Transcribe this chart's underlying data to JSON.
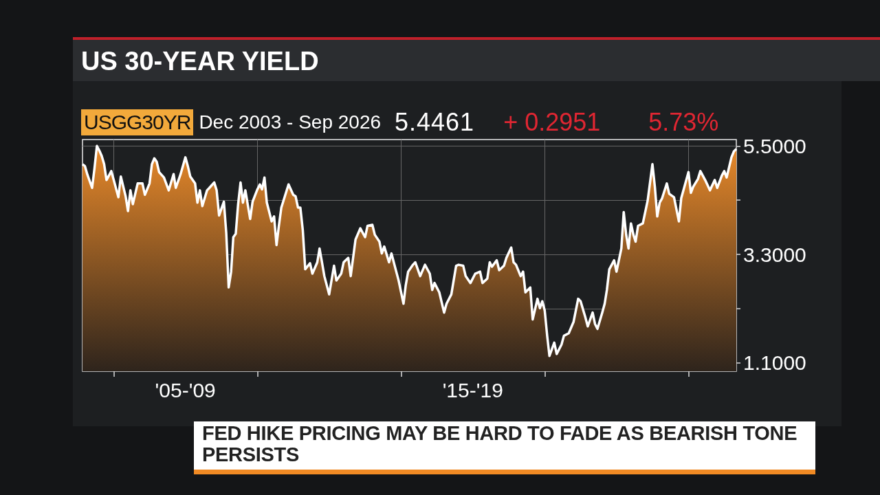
{
  "chart_data": {
    "type": "area",
    "title": "US 30-YEAR YIELD",
    "annotations": [
      "USGG30YR",
      "Dec 2003 - Sep 2026",
      "5.4461",
      "+ 0.2951",
      "5.73%",
      "FED HIKE PRICING MAY BE HARD TO FADE AS BEARISH TONE PERSISTS"
    ],
    "x": [
      "2003-12",
      "2004-01",
      "2004-02",
      "2004-04",
      "2004-05",
      "2004-06",
      "2004-07",
      "2004-08",
      "2004-09",
      "2004-10",
      "2004-11",
      "2004-12",
      "2005-01",
      "2005-03",
      "2005-04",
      "2005-06",
      "2005-07",
      "2005-08",
      "2005-09",
      "2005-11",
      "2006-01",
      "2006-02",
      "2006-04",
      "2006-05",
      "2006-06",
      "2006-07",
      "2006-08",
      "2006-10",
      "2006-12",
      "2007-02",
      "2007-03",
      "2007-05",
      "2007-07",
      "2007-08",
      "2007-09",
      "2007-11",
      "2007-12",
      "2008-01",
      "2008-02",
      "2008-04",
      "2008-05",
      "2008-07",
      "2008-08",
      "2008-09",
      "2008-11",
      "2008-12",
      "2009-01",
      "2009-02",
      "2009-03",
      "2009-04",
      "2009-05",
      "2009-06",
      "2009-07",
      "2009-08",
      "2009-10",
      "2009-11",
      "2010-01",
      "2010-02",
      "2010-03",
      "2010-04",
      "2010-05",
      "2010-07",
      "2010-08",
      "2010-09",
      "2010-10",
      "2010-11",
      "2011-02",
      "2011-04",
      "2011-05",
      "2011-06",
      "2011-07",
      "2011-08",
      "2011-09",
      "2011-11",
      "2011-12",
      "2012-02",
      "2012-03",
      "2012-04",
      "2012-05",
      "2012-07",
      "2012-09",
      "2012-10",
      "2012-12",
      "2013-01",
      "2013-03",
      "2013-04",
      "2013-06",
      "2013-08",
      "2013-10",
      "2013-11",
      "2014-01",
      "2014-02",
      "2014-04",
      "2014-05",
      "2014-06",
      "2014-08",
      "2014-09",
      "2014-11",
      "2014-12",
      "2015-02",
      "2015-03",
      "2015-04",
      "2015-06",
      "2015-07",
      "2015-09",
      "2015-11",
      "2016-01",
      "2016-02",
      "2016-03",
      "2016-05",
      "2016-07",
      "2016-08",
      "2016-10",
      "2016-12",
      "2017-01",
      "2017-03",
      "2017-04",
      "2017-06",
      "2017-08",
      "2017-10",
      "2017-11",
      "2018-01",
      "2018-02",
      "2018-03",
      "2018-05",
      "2018-06",
      "2018-08",
      "2018-09",
      "2018-11",
      "2018-12",
      "2019-01",
      "2019-03",
      "2019-04",
      "2019-05",
      "2019-07",
      "2019-08",
      "2019-10",
      "2019-11",
      "2019-12",
      "2020-01",
      "2020-02",
      "2020-03",
      "2020-05",
      "2020-06",
      "2020-08",
      "2020-09",
      "2020-11",
      "2021-01",
      "2021-03",
      "2021-04",
      "2021-06",
      "2021-07",
      "2021-09",
      "2021-10",
      "2021-11",
      "2022-01",
      "2022-02",
      "2022-03",
      "2022-04",
      "2022-06",
      "2022-07",
      "2022-09",
      "2022-10",
      "2022-11",
      "2022-12",
      "2023-01",
      "2023-02",
      "2023-03",
      "2023-04",
      "2023-06",
      "2023-08",
      "2023-10",
      "2023-11",
      "2023-12",
      "2024-01",
      "2024-02",
      "2024-04",
      "2024-05",
      "2024-07",
      "2024-09",
      "2024-10",
      "2025-01",
      "2025-02",
      "2025-03",
      "2025-05",
      "2025-06",
      "2025-08",
      "2025-10",
      "2025-12",
      "2026-01",
      "2026-03",
      "2026-04",
      "2026-05",
      "2026-07",
      "2026-08",
      "2026-09"
    ],
    "series": [
      {
        "color": "#e8892a",
        "values": [
          5.13,
          5.09,
          4.92,
          4.65,
          5.04,
          5.5,
          5.41,
          5.3,
          5.13,
          4.81,
          4.9,
          4.99,
          4.81,
          4.46,
          4.88,
          4.48,
          4.18,
          4.6,
          4.32,
          4.74,
          4.74,
          4.51,
          4.74,
          5.13,
          5.25,
          5.18,
          4.97,
          4.86,
          4.6,
          4.93,
          4.65,
          4.93,
          5.27,
          5.09,
          4.88,
          4.74,
          4.35,
          4.6,
          4.28,
          4.6,
          4.65,
          4.76,
          4.6,
          4.09,
          4.37,
          3.74,
          2.63,
          2.95,
          3.65,
          3.72,
          4.32,
          4.76,
          4.35,
          4.6,
          4.02,
          4.37,
          4.62,
          4.72,
          4.62,
          4.86,
          4.35,
          3.97,
          4.07,
          3.49,
          3.88,
          4.25,
          4.72,
          4.51,
          4.48,
          4.25,
          4.25,
          3.79,
          3.0,
          3.12,
          2.91,
          3.14,
          3.42,
          3.14,
          2.86,
          2.49,
          3.07,
          2.77,
          2.91,
          3.14,
          3.23,
          2.86,
          3.6,
          3.83,
          3.65,
          3.88,
          3.9,
          3.7,
          3.56,
          3.32,
          3.46,
          3.14,
          3.32,
          2.95,
          2.77,
          2.3,
          2.67,
          2.95,
          3.09,
          3.14,
          2.86,
          3.09,
          2.91,
          2.58,
          2.72,
          2.53,
          2.12,
          2.3,
          2.49,
          3.07,
          3.09,
          3.07,
          2.86,
          2.72,
          2.91,
          2.95,
          2.72,
          2.81,
          3.14,
          3.05,
          3.18,
          2.98,
          3.07,
          3.23,
          3.44,
          3.14,
          3.09,
          2.86,
          2.95,
          2.53,
          2.63,
          1.98,
          2.4,
          2.21,
          2.35,
          2.16,
          1.65,
          1.24,
          1.51,
          1.28,
          1.47,
          1.65,
          1.7,
          1.93,
          2.4,
          2.35,
          2.02,
          1.84,
          2.12,
          1.89,
          1.79,
          2.12,
          2.3,
          2.58,
          3.0,
          3.18,
          2.95,
          3.42,
          4.16,
          3.7,
          3.42,
          3.93,
          3.7,
          3.56,
          3.88,
          3.93,
          4.39,
          5.13,
          4.67,
          4.07,
          4.35,
          4.44,
          4.74,
          4.53,
          4.46,
          3.97,
          4.44,
          4.97,
          4.55,
          4.67,
          4.83,
          4.99,
          4.81,
          4.6,
          4.81,
          4.65,
          4.9,
          4.99,
          4.86,
          5.27,
          5.39,
          5.44
        ]
      }
    ],
    "xlim": [
      "2003-12",
      "2026-09"
    ],
    "xticks": [
      {
        "value": "2005-01",
        "label": null
      },
      {
        "value": "2010-01",
        "label": null
      },
      {
        "value": "2015-01",
        "label": null
      },
      {
        "value": "2020-01",
        "label": null
      },
      {
        "value": "2025-01",
        "label": null
      },
      {
        "value": "2007-07",
        "label": "'05-'09"
      },
      {
        "value": "2017-07",
        "label": "'15-'19"
      }
    ],
    "ylim": [
      0.93,
      5.63
    ],
    "yticks": [
      {
        "value": 1.1,
        "label": "1.1000"
      },
      {
        "value": 2.2,
        "label": null
      },
      {
        "value": 3.3,
        "label": "3.3000"
      },
      {
        "value": 4.4,
        "label": null
      },
      {
        "value": 5.5,
        "label": "5.5000"
      }
    ],
    "grid": true,
    "marker": "none",
    "line_style": "solid"
  }
}
